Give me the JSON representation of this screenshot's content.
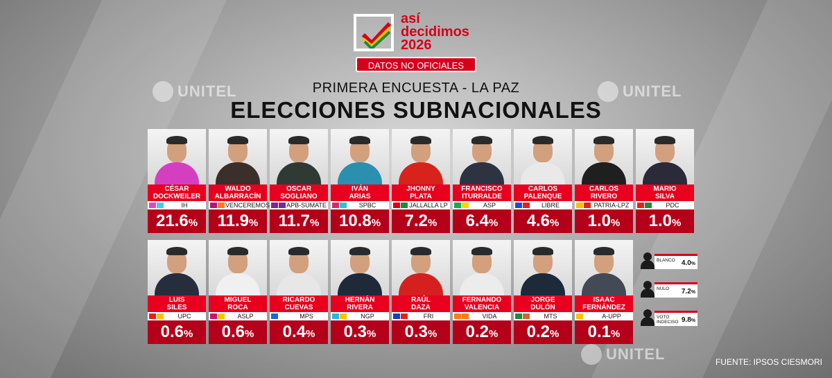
{
  "logo": {
    "line1": "así",
    "line2": "decidimos",
    "line3": "2026",
    "badge": "DATOS NO OFICIALES"
  },
  "watermark": "UNITEL",
  "subtitle": "PRIMERA ENCUESTA - LA PAZ",
  "title": "ELECCIONES SUBNACIONALES",
  "candidates": [
    {
      "name1": "CÉSAR",
      "name2": "DOCKWEILER",
      "party": "IH",
      "pct": "21.6",
      "colors": [
        "#e046c8",
        "#3ed0e8"
      ],
      "body": "#d43fc2"
    },
    {
      "name1": "WALDO",
      "name2": "ALBARRACÍN",
      "party": "VENCEREMOS",
      "pct": "11.9",
      "colors": [
        "#b0187a",
        "#ff7a1a"
      ],
      "body": "#3a2f2a"
    },
    {
      "name1": "OSCAR",
      "name2": "SOGLIANO",
      "party": "APB-SUMATE",
      "pct": "11.7",
      "colors": [
        "#7a2a8c",
        "#7a2a8c"
      ],
      "body": "#2f3a34"
    },
    {
      "name1": "IVÁN",
      "name2": "ARIAS",
      "party": "SPBC",
      "pct": "10.8",
      "colors": [
        "#d6286a",
        "#2bc4d4"
      ],
      "body": "#2b8fb0"
    },
    {
      "name1": "JHONNY",
      "name2": "PLATA",
      "party": "JALLALLA LP",
      "pct": "7.2",
      "colors": [
        "#d6001c",
        "#1d8a3a"
      ],
      "body": "#d8231d"
    },
    {
      "name1": "FRANCISCO",
      "name2": "ITURRALDE",
      "party": "ASP",
      "pct": "6.4",
      "colors": [
        "#1ba84a",
        "#f5d800"
      ],
      "body": "#2d3340"
    },
    {
      "name1": "CARLOS",
      "name2": "PALENQUE",
      "party": "LIBRE",
      "pct": "4.6",
      "colors": [
        "#1a4fd0",
        "#e0231c"
      ],
      "body": "#e9e9e9"
    },
    {
      "name1": "CARLOS",
      "name2": "RIVERO",
      "party": "PATRIA-LPZ",
      "pct": "1.0",
      "colors": [
        "#f5c400",
        "#e0231c"
      ],
      "body": "#1f1f1f"
    },
    {
      "name1": "MARIO",
      "name2": "SILVA",
      "party": "PDC",
      "pct": "1.0",
      "colors": [
        "#e0231c",
        "#1d8a3a"
      ],
      "body": "#2a2a38"
    },
    {
      "name1": "LUIS",
      "name2": "SILES",
      "party": "UPC",
      "pct": "0.6",
      "colors": [
        "#e0231c",
        "#f5c400"
      ],
      "body": "#262d3c"
    },
    {
      "name1": "MIGUEL",
      "name2": "ROCA",
      "party": "ASLP",
      "pct": "0.6",
      "colors": [
        "#c4186c",
        "#f5c400"
      ],
      "body": "#f0f0f0"
    },
    {
      "name1": "RICARDO",
      "name2": "CUEVAS",
      "party": "MPS",
      "pct": "0.4",
      "colors": [
        "#1a6ad0",
        "#ffffff"
      ],
      "body": "#e7e7e7"
    },
    {
      "name1": "HERNÁN",
      "name2": "RIVERA",
      "party": "NGP",
      "pct": "0.3",
      "colors": [
        "#2bb4e0",
        "#f5c400"
      ],
      "body": "#1e2a3a"
    },
    {
      "name1": "RAÚL",
      "name2": "DAZA",
      "party": "FRI",
      "pct": "0.3",
      "colors": [
        "#1a3fb0",
        "#e0231c"
      ],
      "body": "#d62020"
    },
    {
      "name1": "FERNANDO",
      "name2": "VALENCIA",
      "party": "VIDA",
      "pct": "0.2",
      "colors": [
        "#ff7a1a",
        "#ff7a1a"
      ],
      "body": "#ececec"
    },
    {
      "name1": "JORGE",
      "name2": "DULÓN",
      "party": "MTS",
      "pct": "0.2",
      "colors": [
        "#1d8a3a",
        "#c86a2a"
      ],
      "body": "#1d2a3a"
    },
    {
      "name1": "ISAAC",
      "name2": "FERNÁNDEZ",
      "party": "A-UPP",
      "pct": "0.1",
      "colors": [
        "#f5c400",
        "#ffffff"
      ],
      "body": "#444a55"
    }
  ],
  "extras": [
    {
      "label1": "BLANCO",
      "label2": "",
      "pct": "4.0"
    },
    {
      "label1": "NULO",
      "label2": "",
      "pct": "7.2"
    },
    {
      "label1": "VOTO",
      "label2": "INDECISO",
      "pct": "9.8"
    }
  ],
  "percent_symbol": "%",
  "source": "FUENTE: IPSOS CIESMORI"
}
